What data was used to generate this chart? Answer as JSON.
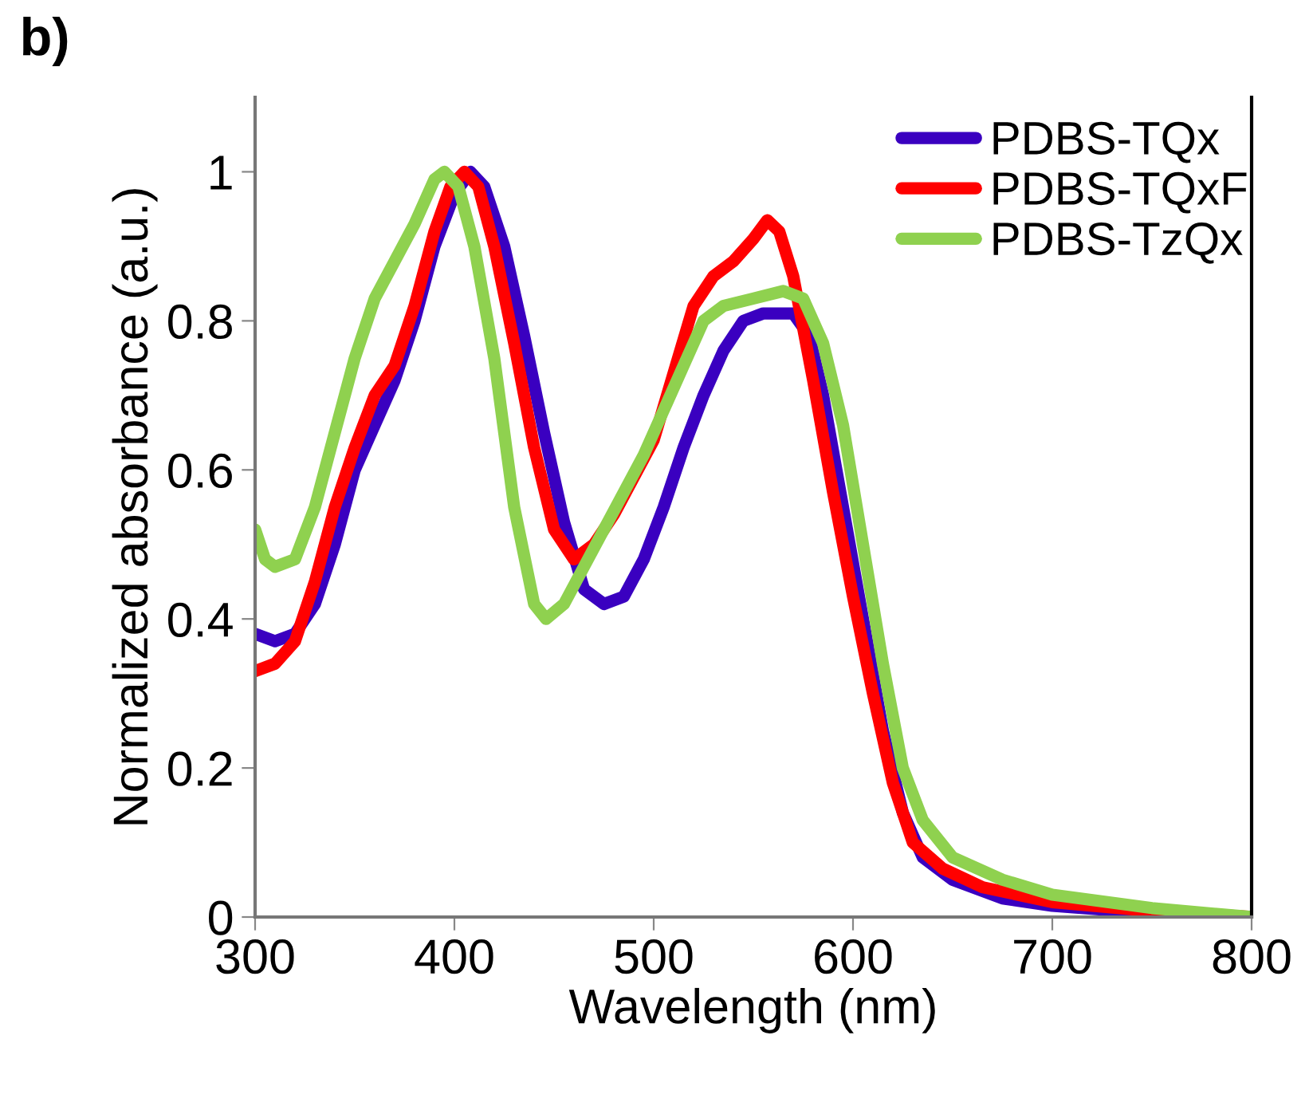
{
  "chart_data": {
    "type": "line",
    "xlabel": "Wavelength (nm)",
    "ylabel": "Normalized absorbance (a.u.)",
    "annotations": [
      "b)"
    ],
    "xlim": [
      300,
      800
    ],
    "xticks": [
      300,
      400,
      500,
      600,
      700,
      800
    ],
    "ylim": [
      0,
      1.1
    ],
    "yticks": [
      0,
      0.2,
      0.4,
      0.6,
      0.8,
      1
    ],
    "grid": false,
    "legend": "top right",
    "marker": "none",
    "line_style": "solid",
    "series": [
      {
        "name": "PDBS-TQx",
        "color": "#3a00c0",
        "x": [
          300,
          310,
          320,
          330,
          340,
          350,
          360,
          370,
          380,
          390,
          400,
          408,
          415,
          425,
          435,
          445,
          455,
          465,
          475,
          485,
          495,
          505,
          515,
          525,
          535,
          545,
          555,
          570,
          578,
          585,
          595,
          605,
          615,
          625,
          635,
          650,
          675,
          700,
          750,
          800
        ],
        "values": [
          0.38,
          0.37,
          0.38,
          0.42,
          0.5,
          0.6,
          0.66,
          0.72,
          0.8,
          0.9,
          0.97,
          1.0,
          0.98,
          0.9,
          0.78,
          0.65,
          0.53,
          0.44,
          0.42,
          0.43,
          0.48,
          0.55,
          0.63,
          0.7,
          0.76,
          0.8,
          0.81,
          0.81,
          0.78,
          0.7,
          0.55,
          0.4,
          0.25,
          0.14,
          0.08,
          0.05,
          0.025,
          0.015,
          0.005,
          0
        ]
      },
      {
        "name": "PDBS-TQxF",
        "color": "#ff0000",
        "x": [
          300,
          310,
          320,
          330,
          340,
          350,
          360,
          370,
          380,
          390,
          398,
          405,
          412,
          420,
          430,
          440,
          450,
          460,
          470,
          480,
          490,
          500,
          510,
          520,
          530,
          540,
          550,
          557,
          563,
          570,
          580,
          590,
          600,
          610,
          620,
          630,
          645,
          665,
          700,
          750,
          800
        ],
        "values": [
          0.33,
          0.34,
          0.37,
          0.45,
          0.55,
          0.63,
          0.7,
          0.74,
          0.82,
          0.92,
          0.98,
          1.0,
          0.98,
          0.9,
          0.77,
          0.63,
          0.52,
          0.48,
          0.5,
          0.54,
          0.59,
          0.64,
          0.73,
          0.82,
          0.86,
          0.88,
          0.91,
          0.935,
          0.92,
          0.86,
          0.72,
          0.57,
          0.43,
          0.3,
          0.18,
          0.1,
          0.065,
          0.04,
          0.02,
          0.008,
          0
        ]
      },
      {
        "name": "PDBS-TzQx",
        "color": "#8fd14f",
        "x": [
          300,
          305,
          310,
          320,
          330,
          340,
          350,
          360,
          370,
          380,
          390,
          395,
          402,
          410,
          420,
          430,
          440,
          446,
          455,
          465,
          475,
          485,
          495,
          505,
          515,
          525,
          535,
          550,
          565,
          575,
          585,
          595,
          605,
          615,
          625,
          635,
          650,
          675,
          700,
          750,
          800
        ],
        "values": [
          0.52,
          0.48,
          0.47,
          0.48,
          0.55,
          0.65,
          0.75,
          0.83,
          0.88,
          0.93,
          0.99,
          1.0,
          0.98,
          0.9,
          0.75,
          0.55,
          0.42,
          0.4,
          0.42,
          0.47,
          0.52,
          0.57,
          0.62,
          0.68,
          0.74,
          0.8,
          0.82,
          0.83,
          0.84,
          0.83,
          0.77,
          0.66,
          0.5,
          0.34,
          0.2,
          0.13,
          0.08,
          0.05,
          0.03,
          0.012,
          0
        ]
      }
    ]
  }
}
